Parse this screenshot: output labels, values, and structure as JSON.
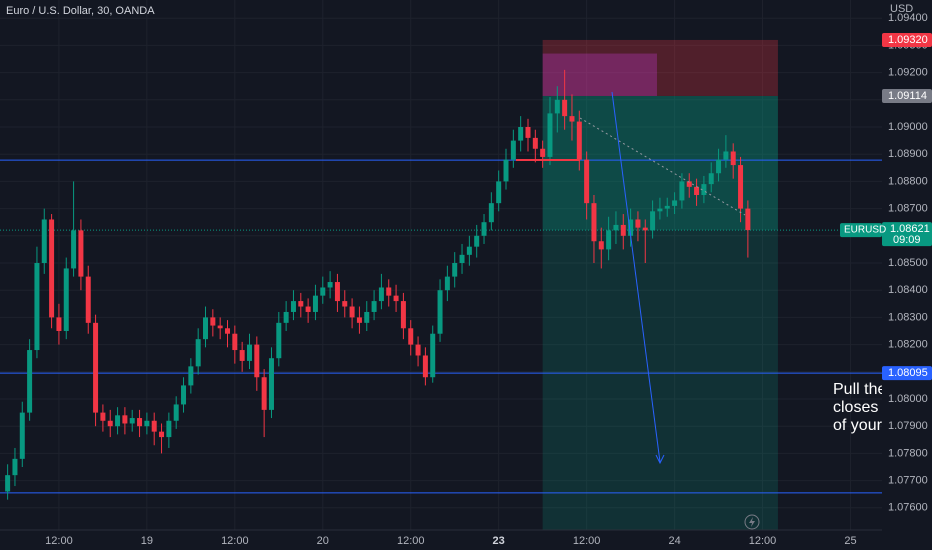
{
  "chart_data": {
    "type": "candlestick",
    "title": "Euro / U.S. Dollar, 30, OANDA",
    "currency": "USD",
    "up_color": "#089981",
    "down_color": "#f23645",
    "grid": true,
    "xlim": [
      3.96,
      124.3
    ],
    "xticks": [
      {
        "value": 12,
        "label": "12:00"
      },
      {
        "value": 24,
        "label": "19"
      },
      {
        "value": 36,
        "label": "12:00"
      },
      {
        "value": 48,
        "label": "20"
      },
      {
        "value": 60,
        "label": "12:00"
      },
      {
        "value": 72,
        "label": "23",
        "bold": true
      },
      {
        "value": 84,
        "label": "12:00"
      },
      {
        "value": 96,
        "label": "24"
      },
      {
        "value": 108,
        "label": "12:00"
      },
      {
        "value": 120,
        "label": "25"
      }
    ],
    "ylim": [
      1.075184,
      1.094669
    ],
    "yticks": [
      {
        "value": 1.076,
        "label": "1.07600"
      },
      {
        "value": 1.077,
        "label": "1.07700"
      },
      {
        "value": 1.078,
        "label": "1.07800"
      },
      {
        "value": 1.079,
        "label": "1.07900"
      },
      {
        "value": 1.08,
        "label": "1.08000"
      },
      {
        "value": 1.081,
        "label": "1.08100"
      },
      {
        "value": 1.082,
        "label": "1.08200"
      },
      {
        "value": 1.083,
        "label": "1.08300"
      },
      {
        "value": 1.084,
        "label": "1.08400"
      },
      {
        "value": 1.085,
        "label": "1.08500"
      },
      {
        "value": 1.086,
        "label": "1.08600"
      },
      {
        "value": 1.087,
        "label": "1.08700"
      },
      {
        "value": 1.088,
        "label": "1.08800"
      },
      {
        "value": 1.089,
        "label": "1.08900"
      },
      {
        "value": 1.09,
        "label": "1.09000"
      },
      {
        "value": 1.091,
        "label": "1.09100"
      },
      {
        "value": 1.092,
        "label": "1.09200"
      },
      {
        "value": 1.093,
        "label": "1.09300"
      },
      {
        "value": 1.094,
        "label": "1.09400"
      }
    ],
    "x": [
      5,
      6,
      7,
      8,
      9,
      10,
      11,
      12,
      13,
      14,
      15,
      16,
      17,
      18,
      19,
      20,
      21,
      22,
      23,
      24,
      25,
      26,
      27,
      28,
      29,
      30,
      31,
      32,
      33,
      34,
      35,
      36,
      37,
      38,
      39,
      40,
      41,
      42,
      43,
      44,
      45,
      46,
      47,
      48,
      49,
      50,
      51,
      52,
      53,
      54,
      55,
      56,
      57,
      58,
      59,
      60,
      61,
      62,
      63,
      64,
      65,
      66,
      67,
      68,
      69,
      70,
      71,
      72,
      73,
      74,
      75,
      76,
      77,
      78,
      79,
      80,
      81,
      82,
      83,
      84,
      85,
      86,
      87,
      88,
      89,
      90,
      91,
      92,
      93,
      94,
      95,
      96,
      97,
      98,
      99,
      100,
      101,
      102,
      103,
      104,
      105,
      106
    ],
    "series": [
      {
        "name": "EURUSD",
        "open": [
          1.0766,
          1.0772,
          1.0778,
          1.0795,
          1.0818,
          1.085,
          1.0866,
          1.083,
          1.0825,
          1.0848,
          1.0862,
          1.0845,
          1.0828,
          1.0795,
          1.0792,
          1.079,
          1.0794,
          1.0791,
          1.0793,
          1.079,
          1.0792,
          1.0788,
          1.0786,
          1.0792,
          1.0798,
          1.0805,
          1.0812,
          1.0822,
          1.083,
          1.0827,
          1.0826,
          1.0824,
          1.0818,
          1.0814,
          1.082,
          1.0808,
          1.0796,
          1.0815,
          1.0828,
          1.0832,
          1.0836,
          1.0834,
          1.0832,
          1.0838,
          1.0841,
          1.0843,
          1.0836,
          1.0834,
          1.083,
          1.0828,
          1.0832,
          1.0836,
          1.0841,
          1.0838,
          1.0836,
          1.0826,
          1.082,
          1.0816,
          1.0808,
          1.0824,
          1.084,
          1.0845,
          1.085,
          1.0853,
          1.0856,
          1.086,
          1.0865,
          1.0872,
          1.088,
          1.0888,
          1.0895,
          1.09,
          1.0896,
          1.0892,
          1.0889,
          1.0905,
          1.091,
          1.0904,
          1.0902,
          1.0888,
          1.0872,
          1.0858,
          1.0855,
          1.0862,
          1.0864,
          1.086,
          1.0866,
          1.0863,
          1.0862,
          1.0869,
          1.087,
          1.0871,
          1.0873,
          1.088,
          1.0878,
          1.0875,
          1.0879,
          1.0883,
          1.0888,
          1.0891,
          1.0886,
          1.087
        ],
        "high": [
          1.0776,
          1.0782,
          1.0799,
          1.0822,
          1.0856,
          1.087,
          1.0868,
          1.0835,
          1.0852,
          1.088,
          1.0866,
          1.0849,
          1.0831,
          1.0798,
          1.0796,
          1.0797,
          1.0797,
          1.0796,
          1.0796,
          1.0795,
          1.0795,
          1.0791,
          1.0795,
          1.0801,
          1.0808,
          1.0815,
          1.0826,
          1.0834,
          1.0833,
          1.083,
          1.0829,
          1.0827,
          1.0821,
          1.0824,
          1.0823,
          1.0811,
          1.0819,
          1.0832,
          1.0836,
          1.084,
          1.0839,
          1.0837,
          1.0842,
          1.0845,
          1.0847,
          1.0846,
          1.084,
          1.0837,
          1.0834,
          1.0836,
          1.084,
          1.0846,
          1.0844,
          1.0842,
          1.0839,
          1.0829,
          1.0823,
          1.0819,
          1.0827,
          1.0844,
          1.0849,
          1.0854,
          1.0857,
          1.086,
          1.0864,
          1.0868,
          1.0876,
          1.0884,
          1.0892,
          1.0899,
          1.0904,
          1.0903,
          1.0899,
          1.0895,
          1.0911,
          1.0915,
          1.0921,
          1.0912,
          1.0906,
          1.0891,
          1.0875,
          1.0863,
          1.0867,
          1.0869,
          1.0868,
          1.087,
          1.0869,
          1.0866,
          1.0873,
          1.0874,
          1.0874,
          1.0876,
          1.0883,
          1.0883,
          1.0881,
          1.0882,
          1.0887,
          1.0892,
          1.0897,
          1.0894,
          1.0889,
          1.0873
        ],
        "low": [
          1.0763,
          1.0768,
          1.0775,
          1.0792,
          1.0815,
          1.0846,
          1.0826,
          1.082,
          1.0822,
          1.0845,
          1.084,
          1.0824,
          1.079,
          1.0788,
          1.0786,
          1.0787,
          1.0787,
          1.0788,
          1.0786,
          1.0787,
          1.0783,
          1.078,
          1.0782,
          1.0789,
          1.0795,
          1.0802,
          1.0809,
          1.0819,
          1.0823,
          1.0822,
          1.0819,
          1.0813,
          1.081,
          1.0811,
          1.0803,
          1.0786,
          1.0793,
          1.0812,
          1.0825,
          1.0829,
          1.083,
          1.0828,
          1.0829,
          1.0835,
          1.0837,
          1.0832,
          1.083,
          1.0826,
          1.0824,
          1.0825,
          1.0829,
          1.0833,
          1.0834,
          1.0832,
          1.0822,
          1.0816,
          1.0812,
          1.0805,
          1.0806,
          1.0821,
          1.0836,
          1.0841,
          1.0846,
          1.0849,
          1.0852,
          1.0857,
          1.0862,
          1.0869,
          1.0877,
          1.0885,
          1.0891,
          1.0891,
          1.0887,
          1.0885,
          1.0886,
          1.0898,
          1.0899,
          1.0895,
          1.0884,
          1.0866,
          1.085,
          1.0848,
          1.0851,
          1.0857,
          1.0855,
          1.0856,
          1.0858,
          1.085,
          1.0859,
          1.0866,
          1.0867,
          1.0868,
          1.087,
          1.0874,
          1.0871,
          1.0872,
          1.0876,
          1.088,
          1.0885,
          1.0881,
          1.0865,
          1.0852
        ],
        "close": [
          1.0772,
          1.0778,
          1.0795,
          1.0818,
          1.085,
          1.0866,
          1.083,
          1.0825,
          1.0848,
          1.0862,
          1.0845,
          1.0828,
          1.0795,
          1.0792,
          1.079,
          1.0794,
          1.0791,
          1.0793,
          1.079,
          1.0792,
          1.0788,
          1.0786,
          1.0792,
          1.0798,
          1.0805,
          1.0812,
          1.0822,
          1.083,
          1.0827,
          1.0826,
          1.0824,
          1.0818,
          1.0814,
          1.082,
          1.0808,
          1.0796,
          1.0815,
          1.0828,
          1.0832,
          1.0836,
          1.0834,
          1.0832,
          1.0838,
          1.0841,
          1.0843,
          1.0836,
          1.0834,
          1.083,
          1.0828,
          1.0832,
          1.0836,
          1.0841,
          1.0838,
          1.0836,
          1.0826,
          1.082,
          1.0816,
          1.0808,
          1.0824,
          1.084,
          1.0845,
          1.085,
          1.0853,
          1.0856,
          1.086,
          1.0865,
          1.0872,
          1.088,
          1.0888,
          1.0895,
          1.09,
          1.0896,
          1.0892,
          1.0889,
          1.0905,
          1.091,
          1.0904,
          1.0902,
          1.0888,
          1.0872,
          1.0858,
          1.0855,
          1.0862,
          1.0864,
          1.086,
          1.0866,
          1.0863,
          1.0862,
          1.0869,
          1.087,
          1.0871,
          1.0873,
          1.088,
          1.0878,
          1.0875,
          1.0879,
          1.0883,
          1.0888,
          1.0891,
          1.0886,
          1.087,
          1.08621
        ]
      }
    ],
    "last_price": {
      "value": 1.08621,
      "label": "1.08621",
      "countdown": "09:09",
      "color": "#089981"
    },
    "horizontal_lines": [
      {
        "value": 1.08878,
        "color": "#2962ff"
      },
      {
        "value": 1.08095,
        "label": "1.08095",
        "color": "#2962ff"
      },
      {
        "value": 1.07655,
        "color": "#2962ff"
      }
    ],
    "position": {
      "x_start": 78,
      "x_end": 110.1,
      "stop": {
        "value": 1.0932,
        "label": "1.09320",
        "color": "#f23645"
      },
      "entry": {
        "value": 1.09114,
        "label": "1.09114",
        "color": "#787b86"
      },
      "target": 1.075,
      "drawdown": {
        "high": 1.0927,
        "x_end": 93.6
      }
    },
    "annotation": [
      "Pull the",
      "closes",
      "of your"
    ]
  }
}
